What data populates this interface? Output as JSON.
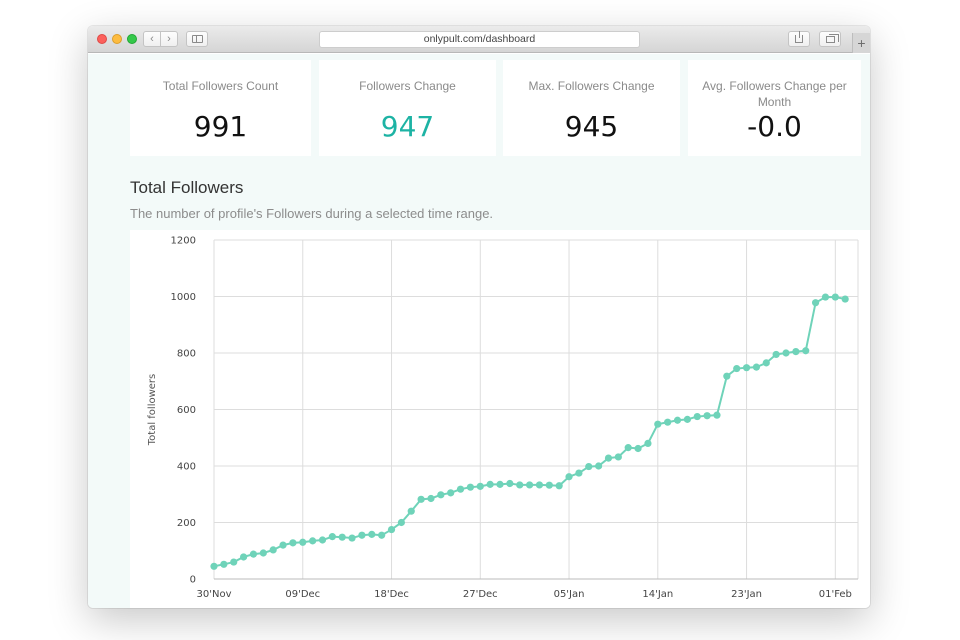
{
  "browser": {
    "url": "onlypult.com/dashboard",
    "back_icon": "chevron-left-icon",
    "forward_icon": "chevron-right-icon",
    "new_tab_label": "+"
  },
  "stats": [
    {
      "label": "Total Followers Count",
      "value": "991",
      "color": "#111111"
    },
    {
      "label": "Followers Change",
      "value": "947",
      "color": "#1db3a4"
    },
    {
      "label": "Max. Followers Change",
      "value": "945",
      "color": "#111111"
    },
    {
      "label": "Avg. Followers Change per Month",
      "value": "-0.0",
      "color": "#111111"
    }
  ],
  "section": {
    "title": "Total Followers",
    "subtitle": "The number of profile's Followers during a selected time range."
  },
  "chart_data": {
    "type": "line",
    "ylabel": "Total followers",
    "ylim": [
      0,
      1200
    ],
    "yticks": [
      0,
      200,
      400,
      600,
      800,
      1000,
      1200
    ],
    "xticks": [
      "30'Nov",
      "09'Dec",
      "18'Dec",
      "27'Dec",
      "05'Jan",
      "14'Jan",
      "23'Jan",
      "01'Feb"
    ],
    "grid": true,
    "color": "#6fd3b9",
    "series": [
      {
        "values": [
          45,
          52,
          60,
          78,
          88,
          92,
          103,
          120,
          128,
          130,
          135,
          138,
          150,
          148,
          145,
          155,
          158,
          155,
          175,
          200,
          240,
          282,
          285,
          298,
          305,
          318,
          325,
          328,
          335,
          335,
          338,
          333,
          333,
          333,
          332,
          330,
          362,
          375,
          398,
          400,
          428,
          432,
          465,
          462,
          480,
          548,
          555,
          562,
          565,
          575,
          578,
          580,
          718,
          745,
          748,
          750,
          765,
          795,
          800,
          805,
          808,
          978,
          998,
          998,
          991
        ]
      }
    ]
  }
}
